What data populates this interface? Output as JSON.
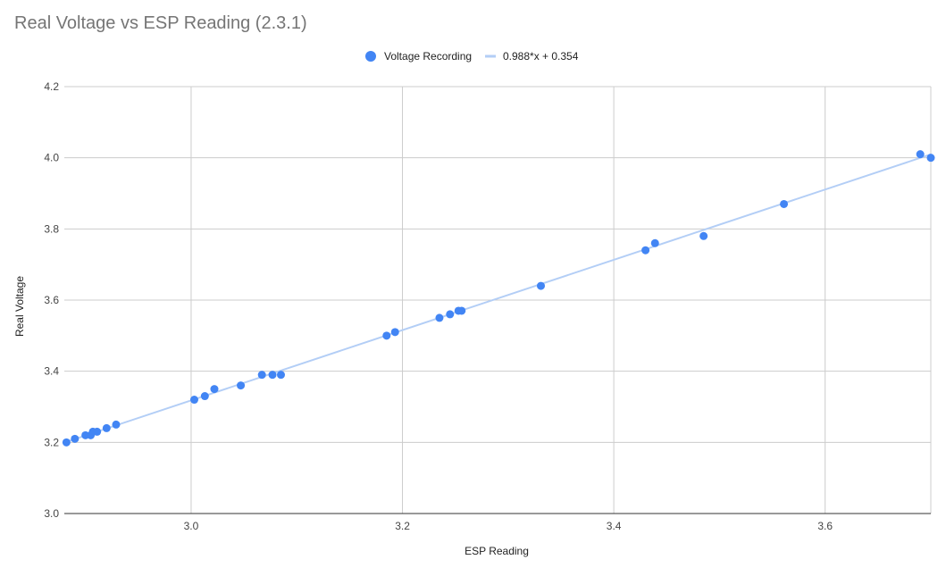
{
  "chart_data": {
    "type": "scatter",
    "title": "Real Voltage vs ESP Reading (2.3.1)",
    "xlabel": "ESP Reading",
    "ylabel": "Real Voltage",
    "xlim": [
      2.88,
      3.7
    ],
    "ylim": [
      3.0,
      4.2
    ],
    "x_ticks": [
      "3.0",
      "3.2",
      "3.4",
      "3.6"
    ],
    "y_ticks": [
      "3.0",
      "3.2",
      "3.4",
      "3.6",
      "3.8",
      "4.0",
      "4.2"
    ],
    "x_tick_values": [
      3.0,
      3.2,
      3.4,
      3.6
    ],
    "y_tick_values": [
      3.0,
      3.2,
      3.4,
      3.6,
      3.8,
      4.0,
      4.2
    ],
    "grid": true,
    "legend_position": "top",
    "series": [
      {
        "name": "Voltage Recording",
        "color": "#4285f4",
        "points": [
          [
            2.882,
            3.2
          ],
          [
            2.89,
            3.21
          ],
          [
            2.9,
            3.22
          ],
          [
            2.905,
            3.22
          ],
          [
            2.907,
            3.23
          ],
          [
            2.911,
            3.23
          ],
          [
            2.92,
            3.24
          ],
          [
            2.929,
            3.25
          ],
          [
            3.003,
            3.32
          ],
          [
            3.013,
            3.33
          ],
          [
            3.022,
            3.35
          ],
          [
            3.047,
            3.36
          ],
          [
            3.067,
            3.39
          ],
          [
            3.077,
            3.39
          ],
          [
            3.085,
            3.39
          ],
          [
            3.185,
            3.5
          ],
          [
            3.193,
            3.51
          ],
          [
            3.235,
            3.55
          ],
          [
            3.245,
            3.56
          ],
          [
            3.253,
            3.57
          ],
          [
            3.256,
            3.57
          ],
          [
            3.331,
            3.64
          ],
          [
            3.43,
            3.74
          ],
          [
            3.439,
            3.76
          ],
          [
            3.485,
            3.78
          ],
          [
            3.561,
            3.87
          ],
          [
            3.69,
            4.01
          ],
          [
            3.7,
            4.0
          ]
        ]
      }
    ],
    "trendline": {
      "name": "0.988*x + 0.354",
      "color": "#b3cef6",
      "slope": 0.988,
      "intercept": 0.354
    }
  }
}
